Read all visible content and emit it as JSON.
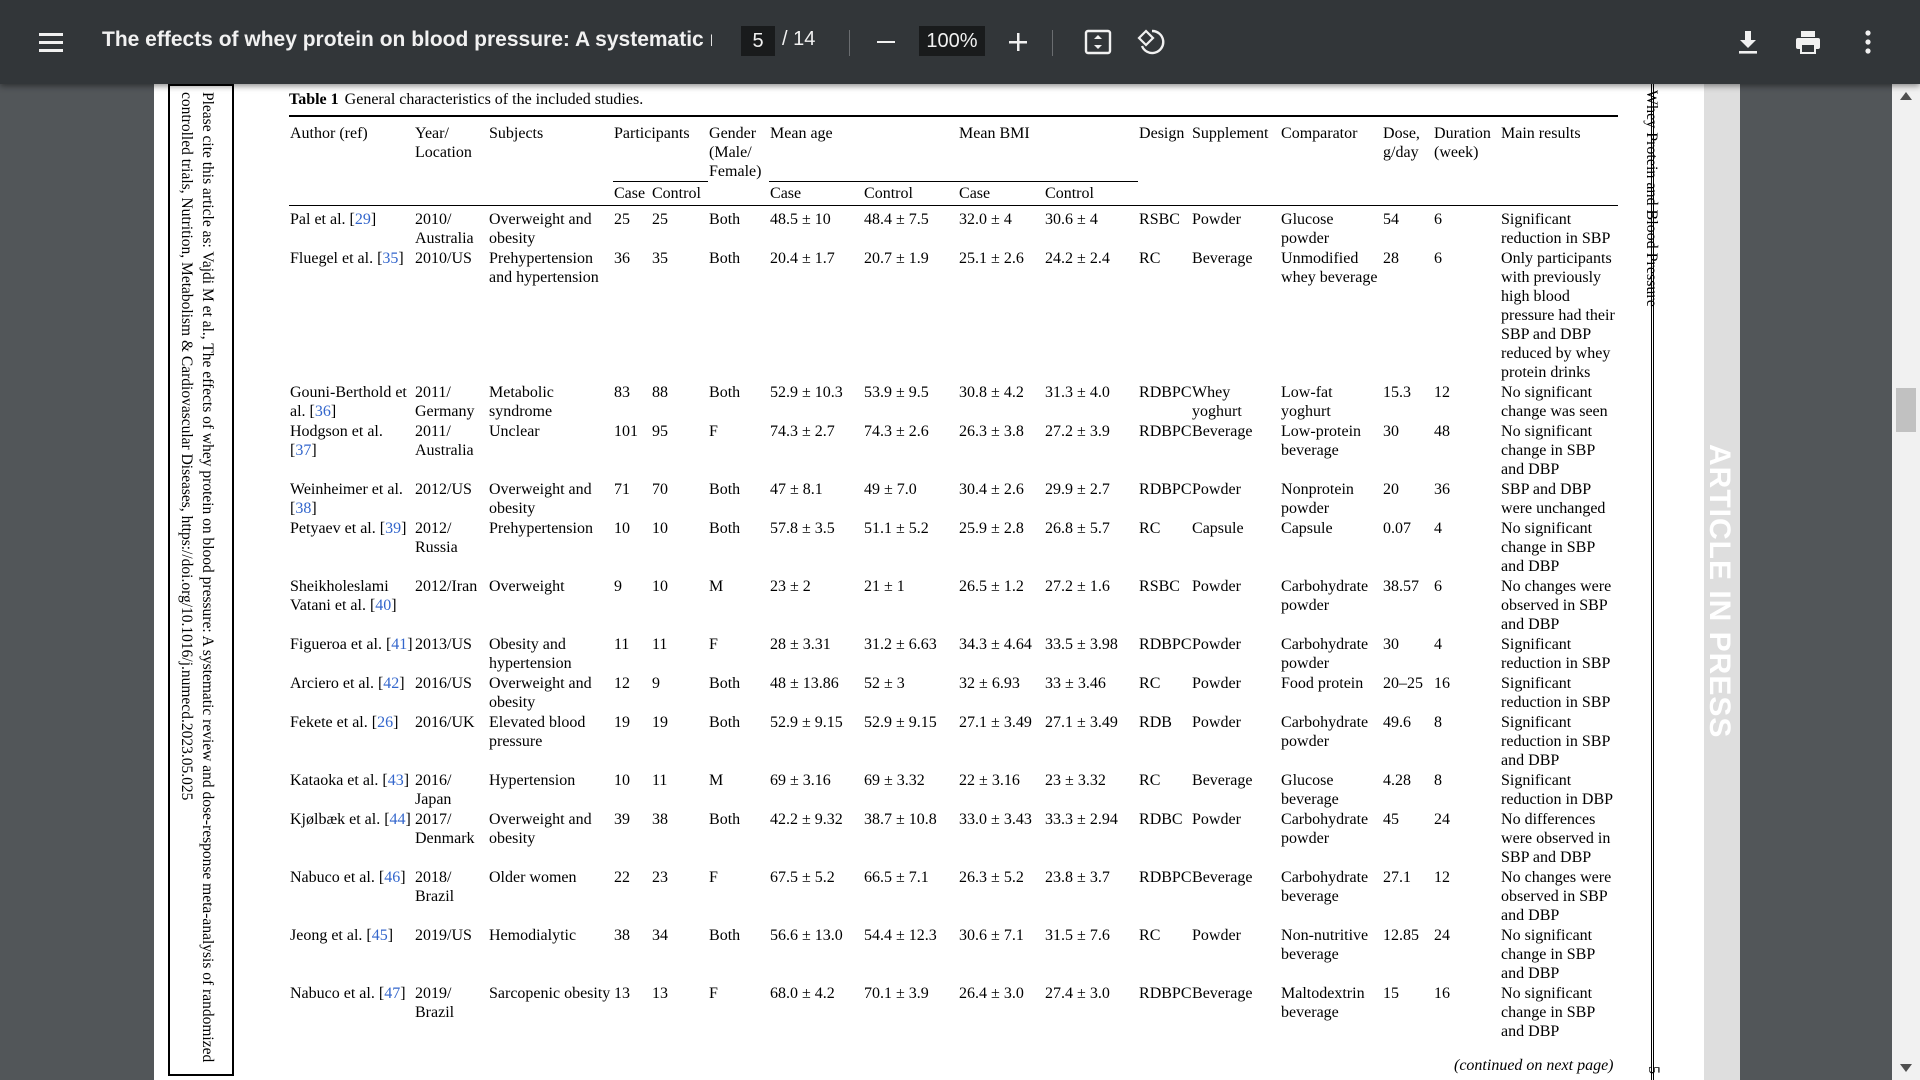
{
  "toolbar": {
    "title": "The effects of whey protein on blood pressure: A systematic re...",
    "current_page": "5",
    "total_pages": "/ 14",
    "zoom": "100%",
    "icons": [
      "menu-icon",
      "minus-icon",
      "plus-icon",
      "fit-page-icon",
      "rotate-icon",
      "download-icon",
      "print-icon",
      "more-vert-icon"
    ]
  },
  "page": {
    "side_citation": "Please cite this article as: Vajdi M et al., The effects of whey protein on blood pressure: A systematic review and dose-response meta-analysis of randomized controlled trials, Nutrition, Metabolism & Cardiovascular Diseases, https://doi.org/10.1016/j.numecd.2023.05.025",
    "running_head": "Whey Protein and Blood Pressure",
    "page_number": "5",
    "watermark": "ARTICLE IN PRESS",
    "continued": "(continued on next page)"
  },
  "table": {
    "caption_label": "Table 1",
    "caption_text": "General characteristics of the included studies.",
    "headers": {
      "author": "Author (ref)",
      "year": "Year/ Location",
      "subjects": "Subjects",
      "participants": "Participants",
      "gender": "Gender (Male/ Female)",
      "mean_age": "Mean age",
      "mean_bmi": "Mean BMI",
      "design": "Design",
      "supplement": "Supplement",
      "comparator": "Comparator",
      "dose": "Dose, g/day",
      "duration": "Duration (week)",
      "results": "Main results",
      "case": "Case",
      "control": "Control"
    },
    "rows": [
      {
        "author": "Pal et al. [",
        "ref": "29",
        "author_end": "]",
        "year": "2010/ Australia",
        "subjects": "Overweight and obesity",
        "p_case": "25",
        "p_control": "25",
        "gender": "Both",
        "age_case": "48.5 ± 10",
        "age_control": "48.4 ± 7.5",
        "bmi_case": "32.0 ± 4",
        "bmi_control": "30.6 ± 4",
        "design": "RSBC",
        "supplement": "Powder",
        "comparator": "Glucose powder",
        "dose": "54",
        "duration": "6",
        "results": "Significant reduction in SBP"
      },
      {
        "author": "Fluegel et al. [",
        "ref": "35",
        "author_end": "]",
        "year": "2010/US",
        "subjects": "Prehypertension and hypertension",
        "p_case": "36",
        "p_control": "35",
        "gender": "Both",
        "age_case": "20.4 ± 1.7",
        "age_control": "20.7 ± 1.9",
        "bmi_case": "25.1 ± 2.6",
        "bmi_control": "24.2 ± 2.4",
        "design": "RC",
        "supplement": "Beverage",
        "comparator": "Unmodified whey beverage",
        "dose": "28",
        "duration": "6",
        "results": "Only participants with previously high blood pressure had their SBP and DBP reduced by whey protein drinks"
      },
      {
        "author": "Gouni-Berthold et al. [",
        "ref": "36",
        "author_end": "]",
        "year": "2011/ Germany",
        "subjects": "Metabolic syndrome",
        "p_case": "83",
        "p_control": "88",
        "gender": "Both",
        "age_case": "52.9 ± 10.3",
        "age_control": "53.9 ± 9.5",
        "bmi_case": "30.8 ± 4.2",
        "bmi_control": "31.3 ± 4.0",
        "design": "RDBPC",
        "supplement": "Whey yoghurt",
        "comparator": "Low-fat yoghurt",
        "dose": "15.3",
        "duration": "12",
        "results": "No significant change was seen"
      },
      {
        "author": "Hodgson et al. [",
        "ref": "37",
        "author_end": "]",
        "year": "2011/ Australia",
        "subjects": "Unclear",
        "p_case": "101",
        "p_control": "95",
        "gender": "F",
        "age_case": "74.3 ± 2.7",
        "age_control": "74.3 ± 2.6",
        "bmi_case": "26.3 ± 3.8",
        "bmi_control": "27.2 ± 3.9",
        "design": "RDBPC",
        "supplement": "Beverage",
        "comparator": "Low-protein beverage",
        "dose": "30",
        "duration": "48",
        "results": "No significant change in SBP and DBP"
      },
      {
        "author": "Weinheimer et al. [",
        "ref": "38",
        "author_end": "]",
        "year": "2012/US",
        "subjects": "Overweight and obesity",
        "p_case": "71",
        "p_control": "70",
        "gender": "Both",
        "age_case": "47 ± 8.1",
        "age_control": "49 ± 7.0",
        "bmi_case": "30.4 ± 2.6",
        "bmi_control": "29.9 ± 2.7",
        "design": "RDBPC",
        "supplement": "Powder",
        "comparator": "Nonprotein powder",
        "dose": "20",
        "duration": "36",
        "results": "SBP and DBP were unchanged"
      },
      {
        "author": "Petyaev et al. [",
        "ref": "39",
        "author_end": "]",
        "year": "2012/ Russia",
        "subjects": "Prehypertension",
        "p_case": "10",
        "p_control": "10",
        "gender": "Both",
        "age_case": "57.8 ± 3.5",
        "age_control": "51.1 ± 5.2",
        "bmi_case": "25.9 ± 2.8",
        "bmi_control": "26.8 ± 5.7",
        "design": "RC",
        "supplement": "Capsule",
        "comparator": "Capsule",
        "dose": "0.07",
        "duration": "4",
        "results": "No significant change in SBP and DBP"
      },
      {
        "author": "Sheikholeslami Vatani et al. [",
        "ref": "40",
        "author_end": "]",
        "year": "2012/Iran",
        "subjects": "Overweight",
        "p_case": "9",
        "p_control": "10",
        "gender": "M",
        "age_case": "23 ± 2",
        "age_control": "21 ± 1",
        "bmi_case": "26.5 ± 1.2",
        "bmi_control": "27.2 ± 1.6",
        "design": "RSBC",
        "supplement": "Powder",
        "comparator": "Carbohydrate powder",
        "dose": "38.57",
        "duration": "6",
        "results": "No changes were observed in SBP and DBP"
      },
      {
        "author": "Figueroa et al. [",
        "ref": "41",
        "author_end": "]",
        "year": "2013/US",
        "subjects": "Obesity and hypertension",
        "p_case": "11",
        "p_control": "11",
        "gender": "F",
        "age_case": "28 ± 3.31",
        "age_control": "31.2 ± 6.63",
        "bmi_case": "34.3 ± 4.64",
        "bmi_control": "33.5 ± 3.98",
        "design": "RDBPC",
        "supplement": "Powder",
        "comparator": "Carbohydrate powder",
        "dose": "30",
        "duration": "4",
        "results": "Significant reduction in SBP"
      },
      {
        "author": "Arciero et al. [",
        "ref": "42",
        "author_end": "]",
        "year": "2016/US",
        "subjects": "Overweight and obesity",
        "p_case": "12",
        "p_control": "9",
        "gender": "Both",
        "age_case": "48 ± 13.86",
        "age_control": "52 ± 3",
        "bmi_case": "32 ± 6.93",
        "bmi_control": "33 ± 3.46",
        "design": "RC",
        "supplement": "Powder",
        "comparator": "Food protein",
        "dose": "20–25",
        "duration": "16",
        "results": "Significant reduction in SBP"
      },
      {
        "author": "Fekete et al. [",
        "ref": "26",
        "author_end": "]",
        "year": "2016/UK",
        "subjects": "Elevated blood pressure",
        "p_case": "19",
        "p_control": "19",
        "gender": "Both",
        "age_case": "52.9 ± 9.15",
        "age_control": "52.9 ± 9.15",
        "bmi_case": "27.1 ± 3.49",
        "bmi_control": "27.1 ± 3.49",
        "design": "RDB",
        "supplement": "Powder",
        "comparator": "Carbohydrate powder",
        "dose": "49.6",
        "duration": "8",
        "results": "Significant reduction in SBP and DBP"
      },
      {
        "author": "Kataoka et al. [",
        "ref": "43",
        "author_end": "]",
        "year": "2016/ Japan",
        "subjects": "Hypertension",
        "p_case": "10",
        "p_control": "11",
        "gender": "M",
        "age_case": "69 ± 3.16",
        "age_control": "69 ± 3.32",
        "bmi_case": "22 ± 3.16",
        "bmi_control": "23 ± 3.32",
        "design": "RC",
        "supplement": "Beverage",
        "comparator": "Glucose beverage",
        "dose": "4.28",
        "duration": "8",
        "results": "Significant reduction in DBP"
      },
      {
        "author": "Kjølbæk et al. [",
        "ref": "44",
        "author_end": "]",
        "year": "2017/ Denmark",
        "subjects": "Overweight and obesity",
        "p_case": "39",
        "p_control": "38",
        "gender": "Both",
        "age_case": "42.2 ± 9.32",
        "age_control": "38.7 ± 10.8",
        "bmi_case": "33.0 ± 3.43",
        "bmi_control": "33.3 ± 2.94",
        "design": "RDBC",
        "supplement": "Powder",
        "comparator": "Carbohydrate powder",
        "dose": "45",
        "duration": "24",
        "results": "No differences were observed in SBP and DBP"
      },
      {
        "author": "Nabuco et al. [",
        "ref": "46",
        "author_end": "]",
        "year": "2018/ Brazil",
        "subjects": "Older women",
        "p_case": "22",
        "p_control": "23",
        "gender": "F",
        "age_case": "67.5 ± 5.2",
        "age_control": "66.5 ± 7.1",
        "bmi_case": "26.3 ± 5.2",
        "bmi_control": "23.8 ± 3.7",
        "design": "RDBPC",
        "supplement": "Beverage",
        "comparator": "Carbohydrate beverage",
        "dose": "27.1",
        "duration": "12",
        "results": "No changes were observed in SBP and DBP"
      },
      {
        "author": "Jeong et al. [",
        "ref": "45",
        "author_end": "]",
        "year": "2019/US",
        "subjects": "Hemodialytic",
        "p_case": "38",
        "p_control": "34",
        "gender": "Both",
        "age_case": "56.6 ± 13.0",
        "age_control": "54.4 ± 12.3",
        "bmi_case": "30.6 ± 7.1",
        "bmi_control": "31.5 ± 7.6",
        "design": "RC",
        "supplement": "Powder",
        "comparator": "Non-nutritive beverage",
        "dose": "12.85",
        "duration": "24",
        "results": "No significant change in SBP and DBP"
      },
      {
        "author": "Nabuco et al. [",
        "ref": "47",
        "author_end": "]",
        "year": "2019/ Brazil",
        "subjects": "Sarcopenic obesity",
        "p_case": "13",
        "p_control": "13",
        "gender": "F",
        "age_case": "68.0 ± 4.2",
        "age_control": "70.1 ± 3.9",
        "bmi_case": "26.4 ± 3.0",
        "bmi_control": "27.4 ± 3.0",
        "design": "RDBPC",
        "supplement": "Beverage",
        "comparator": "Maltodextrin beverage",
        "dose": "15",
        "duration": "16",
        "results": "No significant change in SBP and DBP"
      }
    ]
  }
}
